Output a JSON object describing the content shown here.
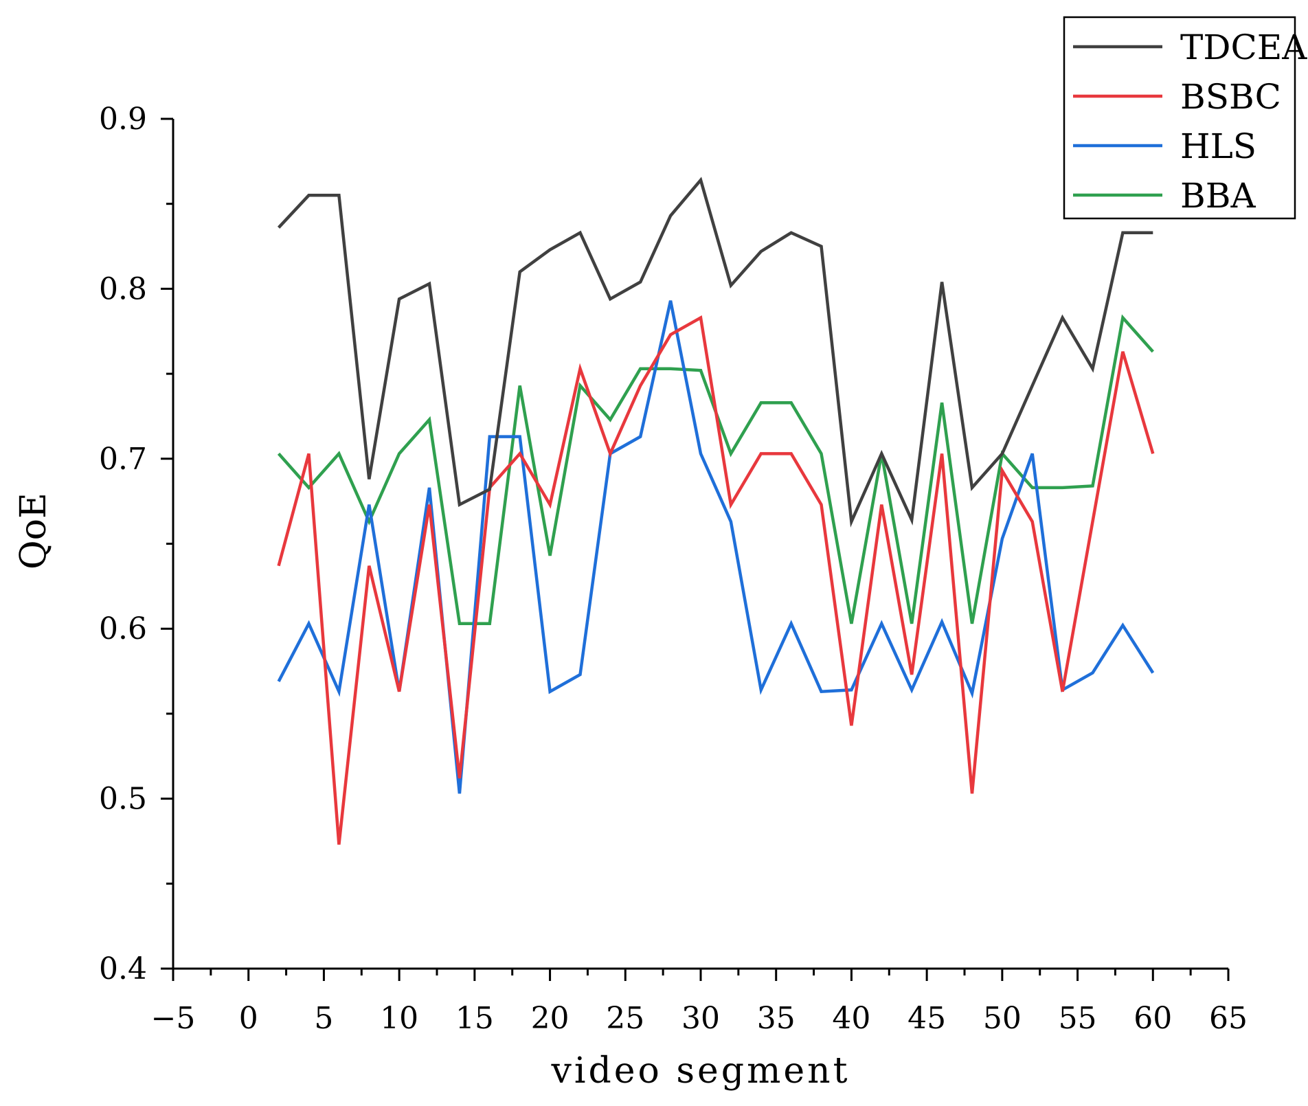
{
  "chart_data": {
    "type": "line",
    "xlabel": "video segment",
    "ylabel": "QoE",
    "xlim": [
      -5,
      65
    ],
    "ylim": [
      0.4,
      0.9
    ],
    "x_ticks": [
      "−5",
      "0",
      "5",
      "10",
      "15",
      "20",
      "25",
      "30",
      "35",
      "40",
      "45",
      "50",
      "55",
      "60",
      "65"
    ],
    "y_ticks": [
      "0.4",
      "0.5",
      "0.6",
      "0.7",
      "0.8",
      "0.9"
    ],
    "grid": false,
    "legend_position": "top-right",
    "x": [
      2,
      4,
      6,
      8,
      10,
      12,
      14,
      16,
      18,
      20,
      22,
      24,
      26,
      28,
      30,
      32,
      34,
      36,
      38,
      40,
      42,
      44,
      46,
      48,
      50,
      52,
      54,
      56,
      58,
      60
    ],
    "series": [
      {
        "name": "TDCEA",
        "color": "#404040",
        "values": [
          0.836,
          0.855,
          0.855,
          0.688,
          0.794,
          0.803,
          0.673,
          0.682,
          0.81,
          0.823,
          0.833,
          0.794,
          0.804,
          0.843,
          0.864,
          0.802,
          0.822,
          0.833,
          0.825,
          0.663,
          0.703,
          0.664,
          0.804,
          0.683,
          0.703,
          0.743,
          0.783,
          0.753,
          0.833,
          0.833
        ]
      },
      {
        "name": "BSBC",
        "color": "#e8383d",
        "values": [
          0.637,
          0.703,
          0.473,
          0.637,
          0.563,
          0.673,
          0.512,
          0.683,
          0.703,
          0.673,
          0.753,
          0.703,
          0.743,
          0.773,
          0.783,
          0.673,
          0.703,
          0.703,
          0.673,
          0.543,
          0.673,
          0.573,
          0.703,
          0.503,
          0.693,
          0.663,
          0.563,
          0.663,
          0.763,
          0.703
        ]
      },
      {
        "name": "HLS",
        "color": "#1f6fd9",
        "values": [
          0.569,
          0.603,
          0.563,
          0.673,
          0.563,
          0.683,
          0.503,
          0.713,
          0.713,
          0.563,
          0.573,
          0.703,
          0.713,
          0.793,
          0.703,
          0.663,
          0.564,
          0.603,
          0.563,
          0.564,
          0.603,
          0.564,
          0.604,
          0.562,
          0.653,
          0.703,
          0.564,
          0.574,
          0.602,
          0.574
        ]
      },
      {
        "name": "BBA",
        "color": "#2fa04f",
        "values": [
          0.703,
          0.683,
          0.703,
          0.663,
          0.703,
          0.723,
          0.603,
          0.603,
          0.743,
          0.643,
          0.743,
          0.723,
          0.753,
          0.753,
          0.752,
          0.703,
          0.733,
          0.733,
          0.703,
          0.603,
          0.703,
          0.603,
          0.733,
          0.603,
          0.703,
          0.683,
          0.683,
          0.684,
          0.783,
          0.763
        ]
      }
    ]
  }
}
